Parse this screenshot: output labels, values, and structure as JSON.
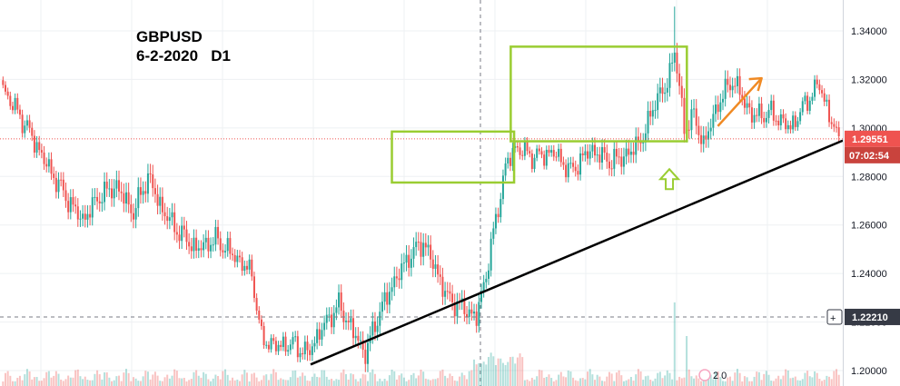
{
  "chart_data": {
    "type": "candlestick",
    "title": "GBPUSD",
    "subtitle": "6-2-2020   D1",
    "ylim": [
      1.195,
      1.352
    ],
    "yticks": [
      "1.34000",
      "1.32000",
      "1.30000",
      "1.28000",
      "1.26000",
      "1.24000",
      "1.22000",
      "1.20000"
    ],
    "ytick_values": [
      1.34,
      1.32,
      1.3,
      1.28,
      1.26,
      1.24,
      1.22,
      1.2
    ],
    "grid": true,
    "price_label": {
      "value": 1.29551,
      "text": "1.29551",
      "countdown": "07:02:54",
      "color": "#ef5350"
    },
    "crosshair_label": {
      "value": 1.2221,
      "text": "1.22210"
    },
    "crosshair_plus": "+",
    "bottom_marker": "2 0",
    "colors": {
      "up": "#26a69a",
      "down": "#ef5350",
      "volume_up": "#26a69a",
      "volume_down": "#ef5350",
      "box": "#9acd32",
      "up_arrow": "#9acd32",
      "target_arrow": "#f08a24",
      "trendline": "#000000"
    },
    "annotations": {
      "trendline": {
        "from": [
          0,
          1.2025
        ],
        "to": [
          1,
          1.2948
        ]
      },
      "boxes": [
        {
          "name": "consolidation-box-1",
          "x_start": 0.465,
          "x_end": 0.61,
          "y_top": 1.2985,
          "y_bottom": 1.2775
        },
        {
          "name": "consolidation-box-2",
          "x_start": 0.606,
          "x_end": 0.815,
          "y_top": 1.3335,
          "y_bottom": 1.2945
        }
      ],
      "up_arrow": {
        "x": 0.791,
        "y": 1.2815
      },
      "target_arrow": {
        "from": [
          0.8,
          1.2985
        ],
        "to": [
          0.852,
          1.3205
        ]
      }
    },
    "summary": {
      "start_close": 1.316,
      "low": 1.205,
      "high": 1.35,
      "last": 1.2955
    }
  }
}
